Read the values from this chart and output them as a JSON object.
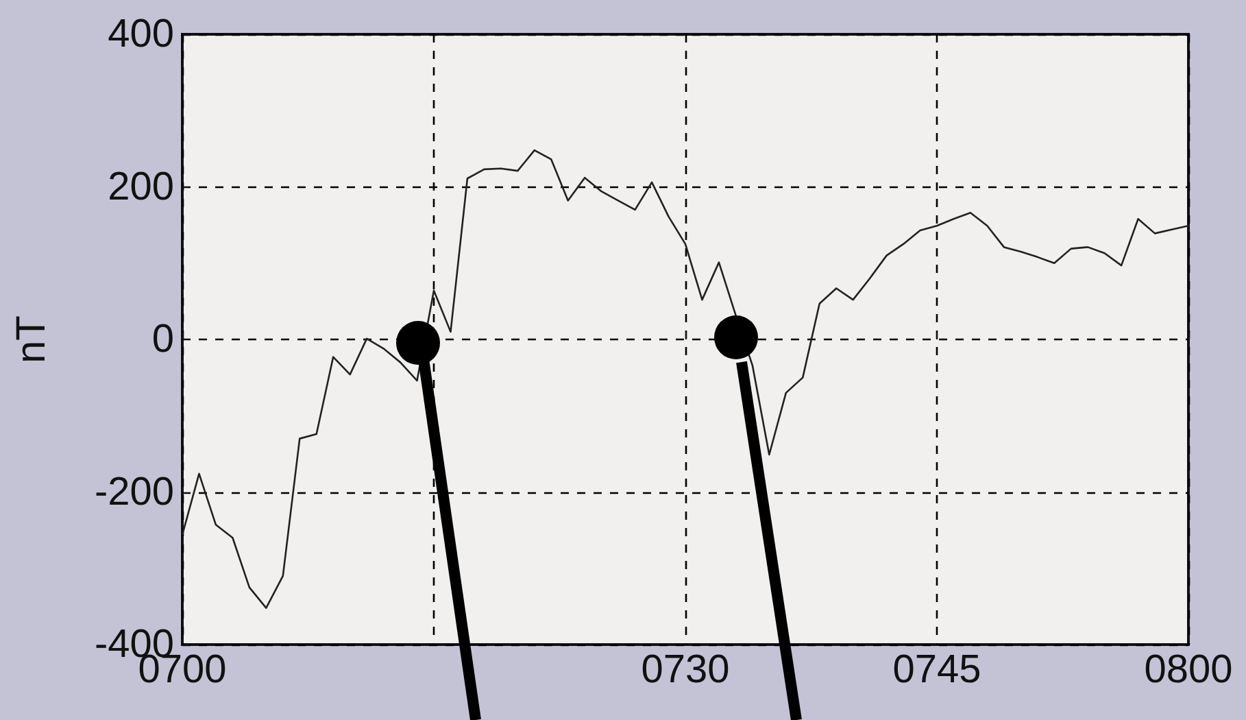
{
  "chart_data": {
    "type": "line",
    "ylabel": "nT",
    "categories": [
      "0700",
      null,
      null,
      null,
      null,
      null,
      null,
      null,
      null,
      null,
      null,
      null,
      null,
      null,
      null,
      null,
      null,
      null,
      null,
      null,
      null,
      null,
      null,
      null,
      null,
      null,
      null,
      null,
      null,
      null,
      "0730",
      null,
      null,
      null,
      null,
      null,
      null,
      null,
      null,
      null,
      null,
      null,
      null,
      null,
      null,
      "0745",
      null,
      null,
      null,
      null,
      null,
      null,
      null,
      null,
      null,
      null,
      null,
      null,
      null,
      null,
      "0800"
    ],
    "series": [
      {
        "color": "#222222",
        "values": [
          -256,
          -176,
          -243,
          -260,
          -325,
          -352,
          -310,
          -130,
          -124,
          -23,
          -46,
          1,
          -12,
          -30,
          -54,
          64,
          10,
          211,
          223,
          224,
          221,
          248,
          236,
          182,
          212,
          194,
          182,
          170,
          206,
          161,
          125,
          52,
          101,
          32,
          -34,
          -151,
          -70,
          -50,
          47,
          67,
          52,
          80,
          110,
          125,
          143,
          149,
          158,
          166,
          149,
          121,
          115,
          108,
          100,
          119,
          121,
          113,
          97,
          158,
          139,
          144,
          149
        ]
      }
    ],
    "ylim": [
      -400,
      400
    ],
    "yticks": [
      -400,
      -200,
      0,
      200,
      400
    ],
    "grid": true,
    "marker": "none",
    "line_style": "solid"
  }
}
